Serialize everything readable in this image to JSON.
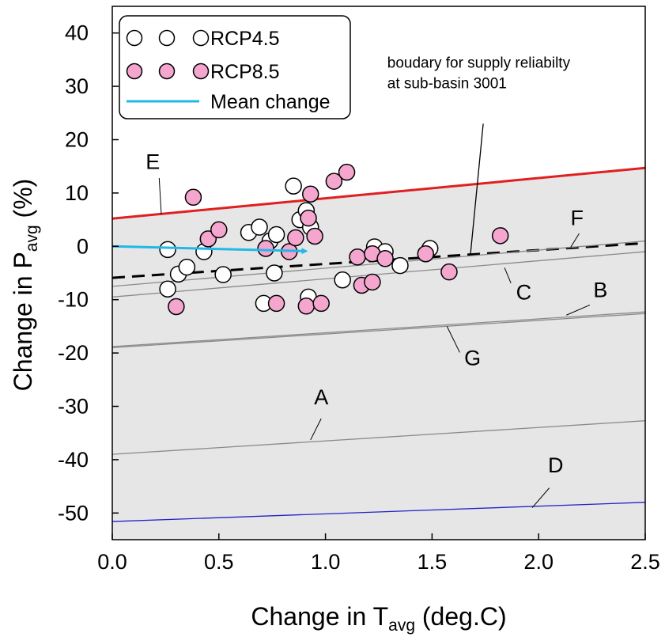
{
  "chart_data": {
    "type": "scatter",
    "xlabel": {
      "main": "Change in T",
      "sub": "avg",
      "tail": " (deg.C)"
    },
    "ylabel": {
      "main": "Change in P",
      "sub": "avg",
      "tail": " (%)"
    },
    "xlim": [
      0,
      2.5
    ],
    "ylim": [
      -55,
      45
    ],
    "xticks": [
      0,
      0.5,
      1,
      1.5,
      2,
      2.5
    ],
    "xtick_labels": [
      "0.0",
      "0.5",
      "1.0",
      "1.5",
      "2.0",
      "2.5"
    ],
    "yticks": [
      -50,
      -40,
      -30,
      -20,
      -10,
      0,
      10,
      20,
      30,
      40
    ],
    "ytick_labels": [
      "-50",
      "-40",
      "-30",
      "-20",
      "-10",
      "0",
      "10",
      "20",
      "30",
      "40"
    ],
    "grid": false,
    "legend_position": "top-left",
    "legend": [
      {
        "label": "RCP4.5",
        "marker": "open-circle"
      },
      {
        "label": "RCP8.5",
        "marker": "pink-circle"
      },
      {
        "label": "Mean change",
        "marker": "line"
      }
    ],
    "series": [
      {
        "name": "RCP4.5",
        "color": "#ffffff",
        "edge": "#000000",
        "points": [
          [
            0.26,
            -0.6
          ],
          [
            0.26,
            -8.0
          ],
          [
            0.31,
            -5.2
          ],
          [
            0.35,
            -3.9
          ],
          [
            0.43,
            -1.0
          ],
          [
            0.52,
            -5.3
          ],
          [
            0.64,
            2.6
          ],
          [
            0.69,
            3.6
          ],
          [
            0.71,
            -10.7
          ],
          [
            0.74,
            1.0
          ],
          [
            0.76,
            -5.0
          ],
          [
            0.77,
            2.2
          ],
          [
            0.85,
            11.3
          ],
          [
            0.88,
            5.0
          ],
          [
            0.91,
            6.7
          ],
          [
            0.92,
            -9.5
          ],
          [
            0.93,
            3.6
          ],
          [
            1.08,
            -6.3
          ],
          [
            1.23,
            -0.1
          ],
          [
            1.28,
            -1.0
          ],
          [
            1.35,
            -3.6
          ],
          [
            1.49,
            -0.4
          ]
        ]
      },
      {
        "name": "RCP8.5",
        "color": "#f4a6cf",
        "edge": "#000000",
        "points": [
          [
            0.3,
            -11.3
          ],
          [
            0.38,
            9.2
          ],
          [
            0.45,
            1.4
          ],
          [
            0.5,
            3.1
          ],
          [
            0.72,
            -0.4
          ],
          [
            0.77,
            -10.7
          ],
          [
            0.83,
            -1.0
          ],
          [
            0.86,
            1.6
          ],
          [
            0.91,
            -11.2
          ],
          [
            0.92,
            5.3
          ],
          [
            0.93,
            9.8
          ],
          [
            0.95,
            1.9
          ],
          [
            0.98,
            -10.7
          ],
          [
            1.04,
            12.2
          ],
          [
            1.1,
            13.9
          ],
          [
            1.15,
            -2.0
          ],
          [
            1.17,
            -7.3
          ],
          [
            1.22,
            -1.4
          ],
          [
            1.22,
            -6.7
          ],
          [
            1.28,
            -2.3
          ],
          [
            1.47,
            -1.4
          ],
          [
            1.58,
            -4.8
          ],
          [
            1.82,
            2.0
          ]
        ]
      }
    ],
    "mean_change": {
      "label": "Mean change",
      "color": "#22b8e6",
      "from": [
        0,
        0
      ],
      "to": [
        0.91,
        -0.9
      ]
    },
    "regions": [
      {
        "label": "shaded area",
        "color": "#e6e6e6",
        "top": [
          [
            0,
            5.2
          ],
          [
            2.5,
            14.7
          ]
        ],
        "bottom": -55
      }
    ],
    "lines": [
      {
        "name": "E",
        "color": "#e02020",
        "width": 3,
        "dash": "",
        "from": [
          0,
          5.2
        ],
        "to": [
          2.5,
          14.7
        ]
      },
      {
        "name": "F",
        "color": "#000000",
        "width": 3,
        "dash": "16,9",
        "from": [
          0,
          -5.9
        ],
        "to": [
          2.5,
          0.6
        ]
      },
      {
        "name": "upper-grey",
        "color": "#8a8a8a",
        "width": 1.3,
        "dash": "",
        "from": [
          0,
          -7.5
        ],
        "to": [
          2.5,
          1.0
        ]
      },
      {
        "name": "C",
        "color": "#8a8a8a",
        "width": 1.3,
        "dash": "",
        "from": [
          0,
          -9.5
        ],
        "to": [
          2.5,
          -1.0
        ]
      },
      {
        "name": "B",
        "color": "#8a8a8a",
        "width": 1.3,
        "dash": "",
        "from": [
          0,
          -18.8
        ],
        "to": [
          2.5,
          -12.3
        ]
      },
      {
        "name": "G",
        "color": "#8a8a8a",
        "width": 1.3,
        "dash": "",
        "from": [
          0,
          -19.0
        ],
        "to": [
          2.5,
          -12.6
        ]
      },
      {
        "name": "A",
        "color": "#8a8a8a",
        "width": 1.3,
        "dash": "",
        "from": [
          0,
          -39.0
        ],
        "to": [
          2.5,
          -32.7
        ]
      },
      {
        "name": "D",
        "color": "#2222cc",
        "width": 1.3,
        "dash": "",
        "from": [
          0,
          -51.6
        ],
        "to": [
          2.5,
          -48.0
        ]
      }
    ],
    "line_labels": [
      {
        "text": "E",
        "pos": [
          0.19,
          14.5
        ],
        "leader_from": [
          0.22,
          12.8
        ],
        "leader_to": [
          0.23,
          6.0
        ]
      },
      {
        "text": "F",
        "pos": [
          2.18,
          4.0
        ],
        "leader_from": [
          2.19,
          2.4
        ],
        "leader_to": [
          2.15,
          -0.2
        ]
      },
      {
        "text": "C",
        "pos": [
          1.93,
          -10.0
        ],
        "leader_from": [
          1.87,
          -6.9
        ],
        "leader_to": [
          1.84,
          -4.0
        ]
      },
      {
        "text": "B",
        "pos": [
          2.29,
          -9.5
        ],
        "leader_from": [
          2.24,
          -11.0
        ],
        "leader_to": [
          2.13,
          -12.9
        ]
      },
      {
        "text": "G",
        "pos": [
          1.69,
          -22.3
        ],
        "leader_from": [
          1.63,
          -19.9
        ],
        "leader_to": [
          1.57,
          -15.0
        ]
      },
      {
        "text": "A",
        "pos": [
          0.98,
          -29.6
        ],
        "leader_from": [
          0.98,
          -32.3
        ],
        "leader_to": [
          0.93,
          -36.3
        ]
      },
      {
        "text": "D",
        "pos": [
          2.08,
          -42.4
        ],
        "leader_from": [
          2.05,
          -45.3
        ],
        "leader_to": [
          1.97,
          -49.0
        ]
      }
    ],
    "annotations": [
      {
        "lines": [
          "boudary for supply reliabilty",
          "at sub-basin 3001"
        ],
        "pos": [
          1.29,
          33.5
        ],
        "leader_from": [
          1.74,
          23.0
        ],
        "leader_to": [
          1.68,
          -1.6
        ]
      }
    ]
  }
}
